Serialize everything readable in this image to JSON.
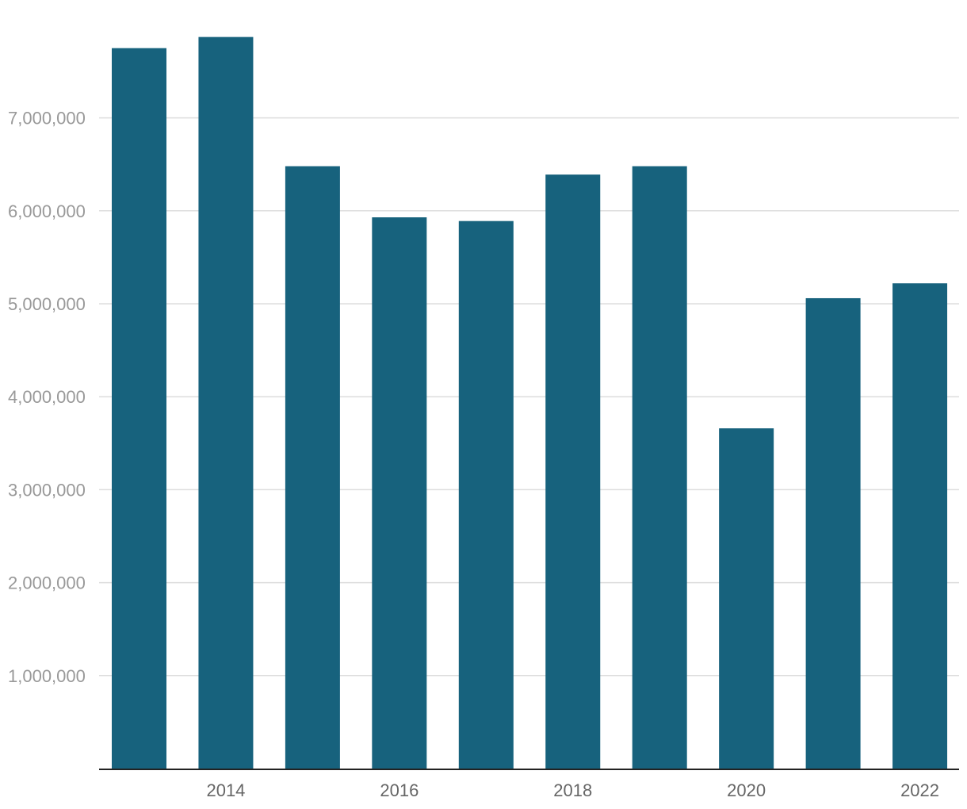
{
  "chart_data": {
    "type": "bar",
    "categories": [
      "2013",
      "2014",
      "2015",
      "2016",
      "2017",
      "2018",
      "2019",
      "2020",
      "2021",
      "2022"
    ],
    "x_tick_labels": [
      "2014",
      "2016",
      "2018",
      "2020",
      "2022"
    ],
    "values": [
      7750000,
      7870000,
      6480000,
      5930000,
      5890000,
      6390000,
      6480000,
      3660000,
      5060000,
      5220000
    ],
    "y_ticks": [
      1000000,
      2000000,
      3000000,
      4000000,
      5000000,
      6000000,
      7000000
    ],
    "y_tick_labels": [
      "1,000,000",
      "2,000,000",
      "3,000,000",
      "4,000,000",
      "5,000,000",
      "6,000,000",
      "7,000,000"
    ],
    "ylim": [
      0,
      8000000
    ],
    "title": "",
    "xlabel": "",
    "ylabel": "",
    "grid": true,
    "legend": "none",
    "bar_color": "#17627d"
  }
}
